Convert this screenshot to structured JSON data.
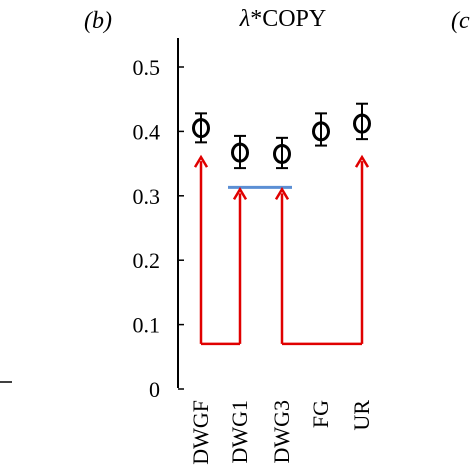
{
  "panel_label": "(b)",
  "next_panel_label": "(c",
  "chart_data": {
    "type": "scatter",
    "title_symbol": "λ",
    "title_text": "*COPY",
    "xlabel": "",
    "ylabel": "",
    "categories": [
      "DWGF",
      "DWG1",
      "DWG3",
      "FG",
      "UR"
    ],
    "values": [
      0.405,
      0.367,
      0.365,
      0.4,
      0.412
    ],
    "error_low": [
      0.383,
      0.343,
      0.343,
      0.378,
      0.388
    ],
    "error_high": [
      0.428,
      0.393,
      0.39,
      0.428,
      0.443
    ],
    "ylim": [
      0,
      0.55
    ],
    "yticks": [
      0,
      0.1,
      0.2,
      0.3,
      0.4,
      0.5
    ],
    "ytick_labels": [
      "0",
      "0.1",
      "0.2",
      "0.3",
      "0.4",
      "0.5"
    ],
    "grid": false,
    "annotations": {
      "horizontal_line": {
        "from": "DWG1",
        "to": "DWG3",
        "y": 0.313,
        "color": "#5b8fd4"
      },
      "brackets": [
        {
          "from": "DWGF",
          "to": "DWG1",
          "baseline_y": 0.07,
          "targets_y": [
            0.36,
            0.31
          ],
          "color": "#e00000"
        },
        {
          "from": "DWG3",
          "to": "UR",
          "baseline_y": 0.07,
          "targets_y": [
            0.31,
            0.36
          ],
          "color": "#e00000"
        }
      ]
    }
  }
}
